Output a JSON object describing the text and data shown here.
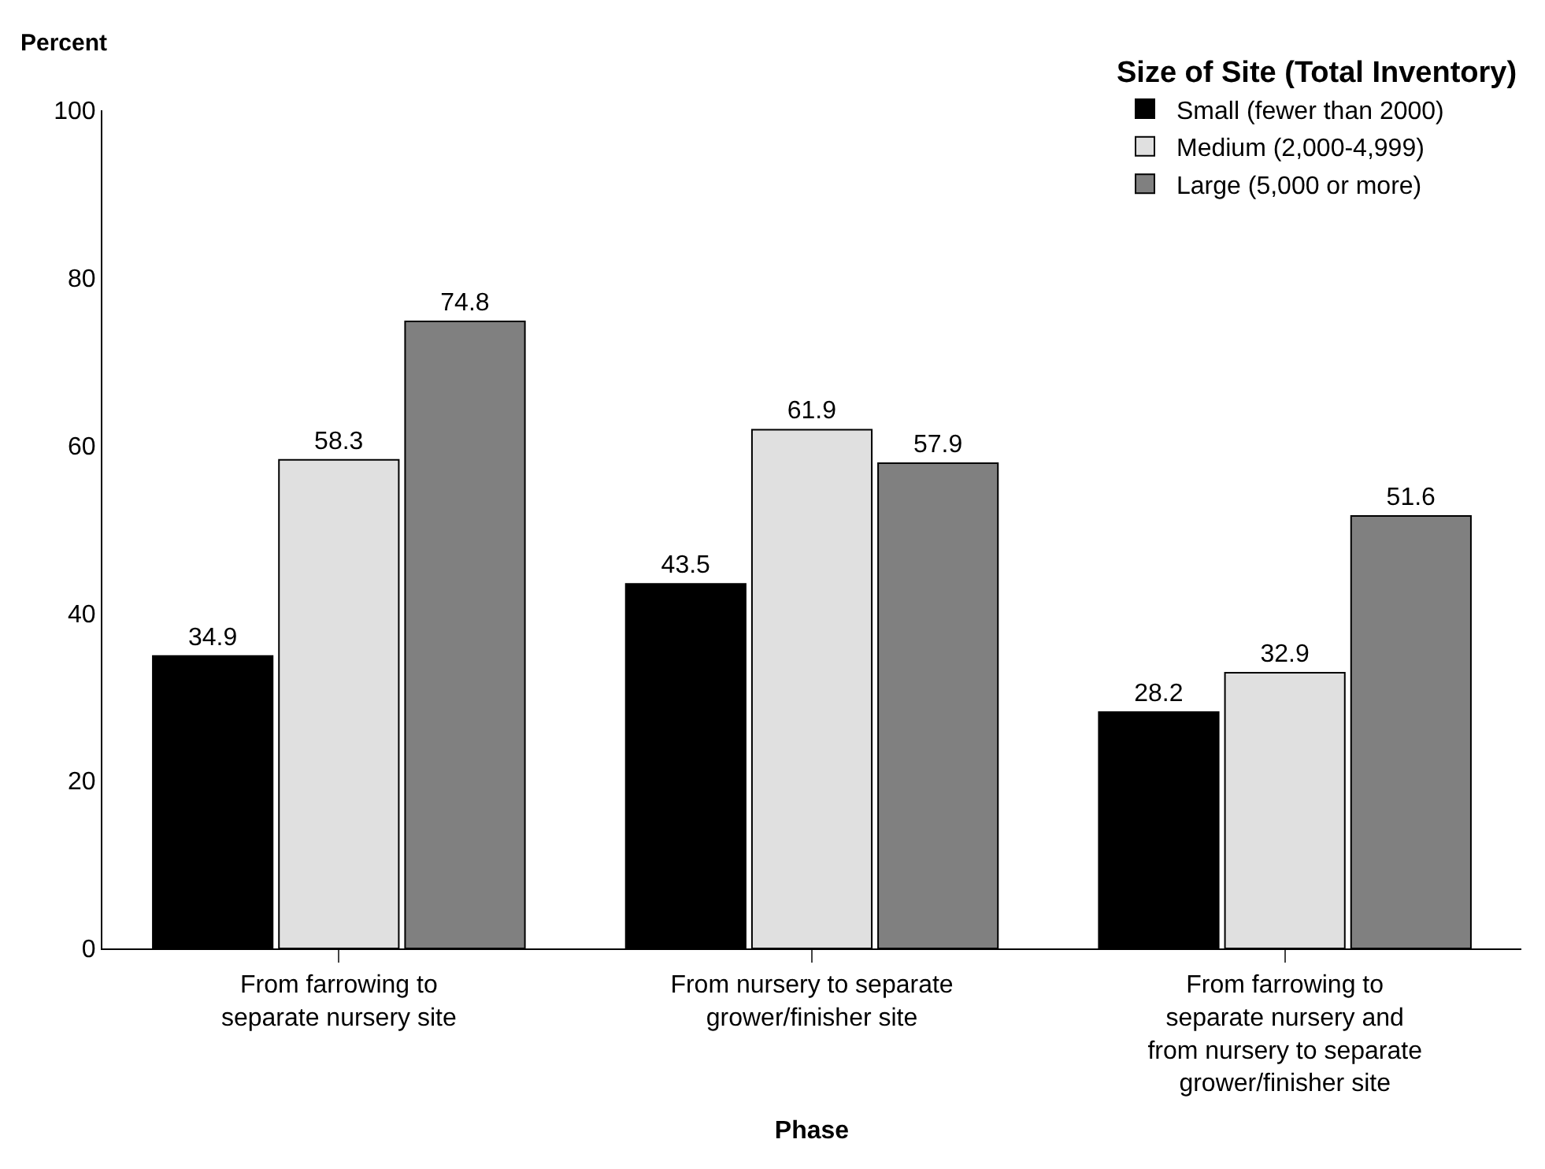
{
  "chart_data": {
    "type": "bar",
    "categories": [
      "From farrowing to separate nursery site",
      "From nursery to separate grower/finisher site",
      "From farrowing to separate nursery and from nursery to separate grower/finisher site"
    ],
    "series": [
      {
        "name": "Small (fewer than 2000)",
        "color": "#000000",
        "values": [
          34.9,
          43.5,
          28.2
        ]
      },
      {
        "name": "Medium (2,000-4,999)",
        "color": "#e0e0e0",
        "values": [
          58.3,
          61.9,
          32.9
        ]
      },
      {
        "name": "Large (5,000 or more)",
        "color": "#808080",
        "values": [
          74.8,
          57.9,
          51.6
        ]
      }
    ],
    "ylabel": "Percent",
    "xlabel": "Phase",
    "legend_title": "Size of Site (Total Inventory)",
    "ylim": [
      0,
      100
    ],
    "yticks": [
      0,
      20,
      40,
      60,
      80,
      100
    ],
    "data_labels": true,
    "legend": "top right"
  }
}
